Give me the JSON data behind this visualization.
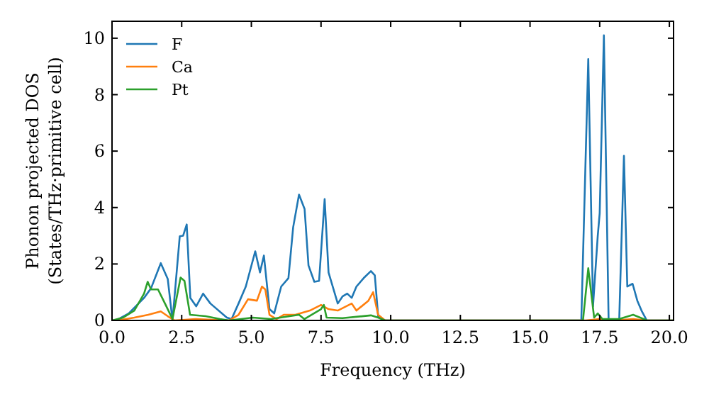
{
  "chart_data": {
    "type": "line",
    "xlabel": "Frequency (THz)",
    "ylabel": "Phonon projected DOS\n(States/THz·primitive cell)",
    "xlim": [
      0,
      20.15
    ],
    "ylim": [
      0,
      10.6
    ],
    "xticks": [
      {
        "value": 0,
        "label": "0.0"
      },
      {
        "value": 2.5,
        "label": "2.5"
      },
      {
        "value": 5,
        "label": "5.0"
      },
      {
        "value": 7.5,
        "label": "7.5"
      },
      {
        "value": 10,
        "label": "10.0"
      },
      {
        "value": 12.5,
        "label": "12.5"
      },
      {
        "value": 15,
        "label": "15.0"
      },
      {
        "value": 17.5,
        "label": "17.5"
      },
      {
        "value": 20,
        "label": "20.0"
      }
    ],
    "yticks": [
      0,
      2,
      4,
      6,
      8,
      10
    ],
    "legend": "top left",
    "grid": false,
    "series": [
      {
        "name": "F",
        "color": "#1f77b4",
        "x": [
          0,
          0.15,
          0.6,
          1.15,
          1.4,
          1.75,
          2.0,
          2.17,
          2.43,
          2.55,
          2.68,
          2.81,
          3.02,
          3.27,
          3.53,
          4.12,
          4.29,
          4.54,
          4.8,
          5.14,
          5.31,
          5.45,
          5.65,
          5.82,
          6.07,
          6.33,
          6.5,
          6.71,
          6.91,
          7.05,
          7.26,
          7.43,
          7.63,
          7.77,
          8.1,
          8.27,
          8.44,
          8.6,
          8.77,
          9.03,
          9.29,
          9.43,
          9.55,
          9.8,
          16.84,
          17.09,
          17.26,
          17.43,
          17.5,
          17.65,
          17.82,
          18.2,
          18.37,
          18.49,
          18.68,
          18.85,
          19.0,
          19.19,
          20.15
        ],
        "values": [
          0,
          0,
          0.25,
          0.8,
          1.14,
          2.03,
          1.47,
          0,
          2.98,
          3.0,
          3.4,
          0.8,
          0.5,
          0.95,
          0.6,
          0.1,
          0.05,
          0.6,
          1.2,
          2.45,
          1.7,
          2.3,
          0.4,
          0.25,
          1.2,
          1.5,
          3.3,
          4.46,
          3.95,
          1.95,
          1.37,
          1.4,
          4.3,
          1.7,
          0.6,
          0.85,
          0.95,
          0.8,
          1.2,
          1.5,
          1.75,
          1.6,
          0.15,
          0,
          0,
          9.26,
          0.5,
          3.0,
          3.8,
          10.1,
          0,
          0,
          5.83,
          1.2,
          1.3,
          0.7,
          0.35,
          0,
          0
        ]
      },
      {
        "name": "Ca",
        "color": "#ff7f0e",
        "x": [
          0,
          0.2,
          0.8,
          1.3,
          1.75,
          2.0,
          2.25,
          3.0,
          4.2,
          4.54,
          4.88,
          5.2,
          5.38,
          5.5,
          5.65,
          5.9,
          6.16,
          6.58,
          7.1,
          7.5,
          7.77,
          8.1,
          8.6,
          8.77,
          9.2,
          9.37,
          9.55,
          9.8,
          17.0,
          17.5,
          18.0,
          18.7,
          19.2,
          20.15
        ],
        "values": [
          0,
          0,
          0.1,
          0.2,
          0.32,
          0.15,
          0,
          0.05,
          0,
          0.2,
          0.75,
          0.7,
          1.2,
          1.1,
          0.2,
          0.05,
          0.2,
          0.2,
          0.35,
          0.55,
          0.4,
          0.35,
          0.6,
          0.35,
          0.7,
          1.0,
          0.2,
          0,
          0,
          0.05,
          0,
          0.05,
          0,
          0
        ]
      },
      {
        "name": "Pt",
        "color": "#2ca02c",
        "x": [
          0,
          0.4,
          0.8,
          1.15,
          1.28,
          1.4,
          1.65,
          1.9,
          2.17,
          2.46,
          2.6,
          2.8,
          3.36,
          3.87,
          4.2,
          5.05,
          5.7,
          6.71,
          6.9,
          7.5,
          7.6,
          7.7,
          8.27,
          9.29,
          9.55,
          9.8,
          16.9,
          17.09,
          17.3,
          17.43,
          17.6,
          18.2,
          18.7,
          19.2,
          20.15
        ],
        "values": [
          0,
          0.1,
          0.35,
          0.95,
          1.37,
          1.1,
          1.1,
          0.6,
          0.05,
          1.52,
          1.4,
          0.2,
          0.15,
          0.05,
          0,
          0.1,
          0.05,
          0.2,
          0.05,
          0.4,
          0.55,
          0.1,
          0.08,
          0.18,
          0.1,
          0,
          0,
          1.85,
          0.1,
          0.25,
          0.05,
          0.05,
          0.2,
          0,
          0
        ]
      }
    ]
  }
}
